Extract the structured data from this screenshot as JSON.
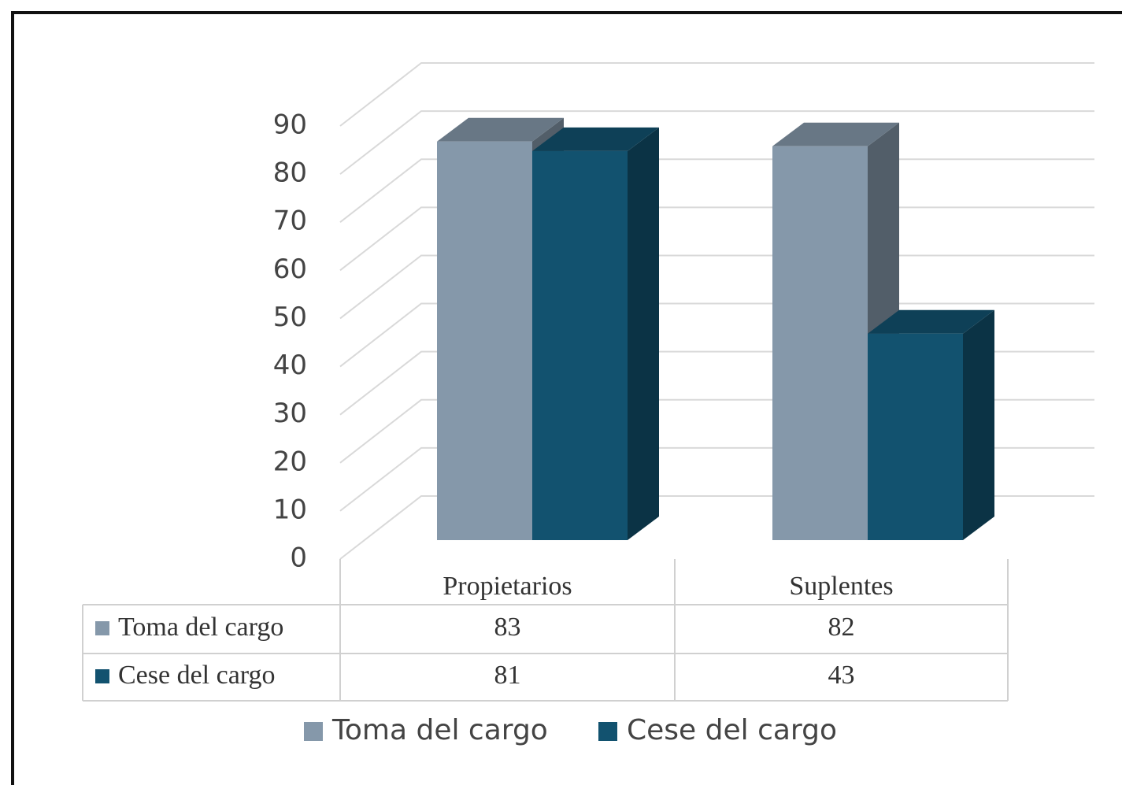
{
  "chart_data": {
    "type": "bar3d",
    "categories": [
      "Propietarios",
      "Suplentes"
    ],
    "series": [
      {
        "name": "Toma del cargo",
        "color": "#8598aa",
        "values": [
          83,
          82
        ]
      },
      {
        "name": "Cese del cargo",
        "color": "#12526f",
        "values": [
          81,
          43
        ]
      }
    ],
    "ylim": [
      0,
      90
    ],
    "yticks": [
      0,
      10,
      20,
      30,
      40,
      50,
      60,
      70,
      80,
      90
    ],
    "grid": true,
    "legend": "bottom",
    "data_table": true
  }
}
